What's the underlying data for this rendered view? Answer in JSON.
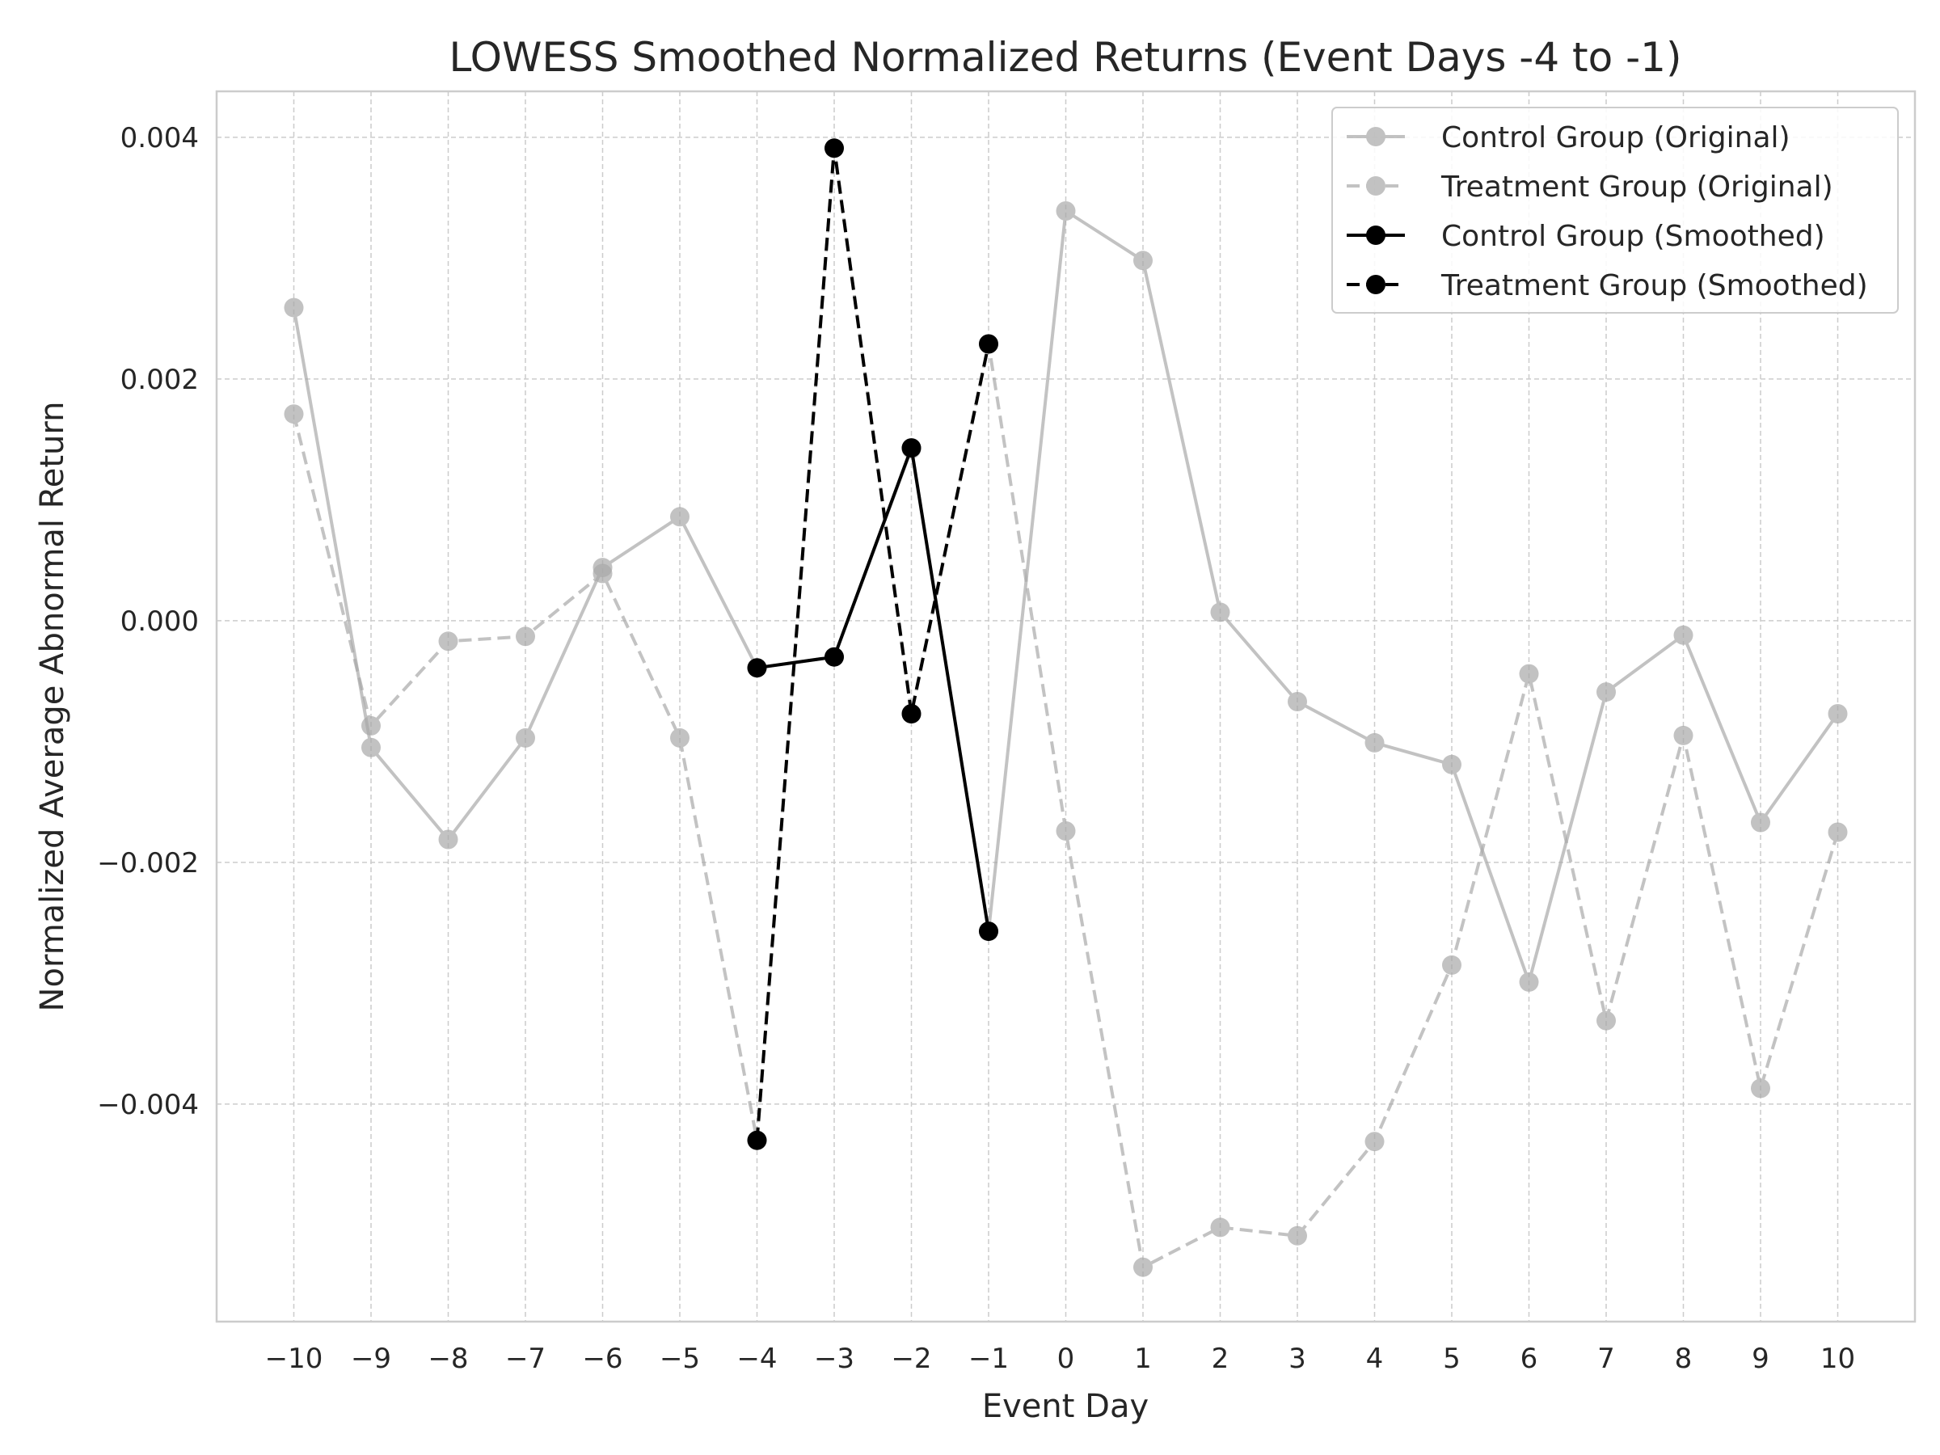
{
  "chart_data": {
    "type": "line",
    "title": "LOWESS Smoothed Normalized Returns (Event Days -4 to -1)",
    "xlabel": "Event Day",
    "ylabel": "Normalized Average Abnormal Return",
    "x_ticks": [
      "−10",
      "−9",
      "−8",
      "−7",
      "−6",
      "−5",
      "−4",
      "−3",
      "−2",
      "−1",
      "0",
      "1",
      "2",
      "3",
      "4",
      "5",
      "6",
      "7",
      "8",
      "9",
      "10"
    ],
    "y_ticks": [
      "−0.004",
      "−0.002",
      "0.000",
      "0.002",
      "0.004"
    ],
    "y_tick_values": [
      -0.004,
      -0.002,
      0.0,
      0.002,
      0.004
    ],
    "xlim": [
      -11,
      11
    ],
    "ylim": [
      -0.0058,
      0.00438
    ],
    "grid": true,
    "legend_position": "top-right",
    "series": [
      {
        "name": "Control Group (Original)",
        "style": "solid",
        "color": "#a9a9a9",
        "opacity": 0.7,
        "x": [
          -10,
          -9,
          -8,
          -7,
          -6,
          -5,
          -4,
          -3,
          -2,
          -1,
          0,
          1,
          2,
          3,
          4,
          5,
          6,
          7,
          8,
          9,
          10
        ],
        "values": [
          0.00259,
          -0.00105,
          -0.00181,
          -0.00097,
          0.00044,
          0.00086,
          -0.00039,
          -0.0003,
          0.00142,
          -0.00257,
          0.00339,
          0.00298,
          7e-05,
          -0.00067,
          -0.00101,
          -0.00119,
          -0.00299,
          -0.00059,
          -0.00012,
          -0.00167,
          -0.00077
        ]
      },
      {
        "name": "Treatment Group (Original)",
        "style": "dashed",
        "color": "#a9a9a9",
        "opacity": 0.7,
        "x": [
          -10,
          -9,
          -8,
          -7,
          -6,
          -5,
          -4,
          -3,
          -2,
          -1,
          0,
          1,
          2,
          3,
          4,
          5,
          6,
          7,
          8,
          9,
          10
        ],
        "values": [
          0.00171,
          -0.00087,
          -0.00017,
          -0.00013,
          0.00039,
          -0.00097,
          -0.0043,
          0.00391,
          -0.00077,
          0.00229,
          -0.00174,
          -0.00535,
          -0.00502,
          -0.00509,
          -0.00431,
          -0.00285,
          -0.00044,
          -0.00331,
          -0.00095,
          -0.00387,
          -0.00175
        ]
      },
      {
        "name": "Control Group (Smoothed)",
        "style": "solid",
        "color": "#000000",
        "opacity": 1,
        "x": [
          -4,
          -3,
          -2,
          -1
        ],
        "values": [
          -0.00039,
          -0.0003,
          0.00143,
          -0.00257
        ]
      },
      {
        "name": "Treatment Group (Smoothed)",
        "style": "dashed",
        "color": "#000000",
        "opacity": 1,
        "x": [
          -4,
          -3,
          -2,
          -1
        ],
        "values": [
          -0.0043,
          0.00391,
          -0.00077,
          0.00229
        ]
      }
    ]
  }
}
